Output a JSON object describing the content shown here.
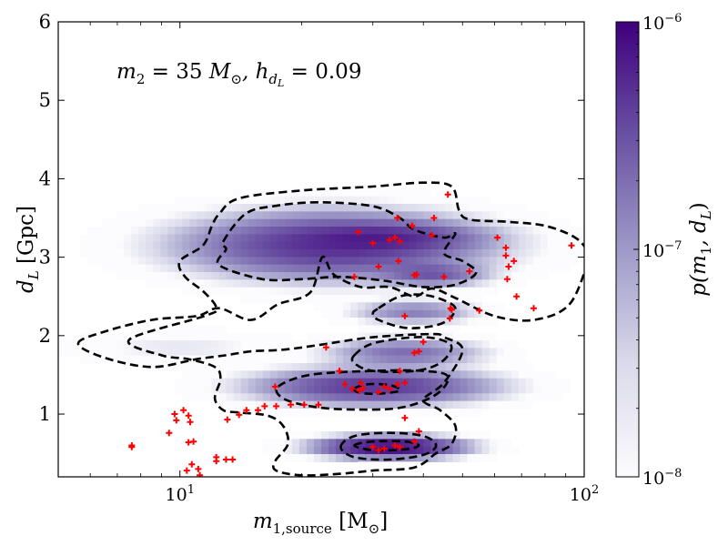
{
  "chart_data": {
    "type": "heatmap",
    "title": "",
    "annotation": "m₂ = 35 M⊙,  h_dL = 0.09",
    "annotation_parts": {
      "m2": "m",
      "m2_sub": "2",
      "m2_rest": " = 35 ",
      "msun": "M",
      "msun_sub": "⊙",
      "h": ",  h",
      "h_sub": "d",
      "h_subsub": "L",
      "h_rest": " = 0.09"
    },
    "xlabel": "m₁,source [M⊙]",
    "xlabel_parts": {
      "m": "m",
      "sub": "1,source",
      "rest": " [M",
      "sun": "⊙",
      "close": "]"
    },
    "ylabel": "d_L [Gpc]",
    "ylabel_parts": {
      "d": "d",
      "sub": "L",
      "rest": " [Gpc]"
    },
    "xscale": "log",
    "xlim": [
      5,
      100
    ],
    "ylim": [
      0.2,
      6
    ],
    "x_ticks": [
      {
        "value": 10,
        "base": "10",
        "exp": "1"
      },
      {
        "value": 100,
        "base": "10",
        "exp": "2"
      }
    ],
    "y_ticks": [
      {
        "value": 1,
        "label": "1"
      },
      {
        "value": 2,
        "label": "2"
      },
      {
        "value": 3,
        "label": "3"
      },
      {
        "value": 4,
        "label": "4"
      },
      {
        "value": 5,
        "label": "5"
      },
      {
        "value": 6,
        "label": "6"
      }
    ],
    "colorbar": {
      "label": "p(m₁, d_L)",
      "label_parts": {
        "p": "p(m",
        "sub1": "1",
        "mid": ", d",
        "subL": "L",
        "close": ")"
      },
      "scale": "log",
      "range": [
        1e-08,
        1e-06
      ],
      "ticks": [
        {
          "value": 1e-08,
          "base": "10",
          "exp": "−8"
        },
        {
          "value": 1e-07,
          "base": "10",
          "exp": "−7"
        },
        {
          "value": 1e-06,
          "base": "10",
          "exp": "−6"
        }
      ],
      "color_low": "#fcfbfd",
      "color_high": "#3f007d"
    },
    "density_blobs": [
      {
        "mx": 24,
        "d": 3.15,
        "sx": 0.19,
        "sd": 0.22,
        "peak": 5e-07
      },
      {
        "mx": 33,
        "d": 3.25,
        "sx": 0.12,
        "sd": 0.1,
        "peak": 3e-07
      },
      {
        "mx": 42,
        "d": 2.78,
        "sx": 0.07,
        "sd": 0.08,
        "peak": 2.5e-07
      },
      {
        "mx": 38,
        "d": 2.3,
        "sx": 0.08,
        "sd": 0.08,
        "peak": 1.5e-07
      },
      {
        "mx": 36,
        "d": 1.78,
        "sx": 0.1,
        "sd": 0.1,
        "peak": 2e-07
      },
      {
        "mx": 30,
        "d": 1.35,
        "sx": 0.15,
        "sd": 0.12,
        "peak": 4.5e-07
      },
      {
        "mx": 33,
        "d": 0.58,
        "sx": 0.09,
        "sd": 0.07,
        "peak": 9e-07
      },
      {
        "mx": 10,
        "d": 1.85,
        "sx": 0.14,
        "sd": 0.12,
        "peak": 2e-08
      }
    ],
    "contours": [
      [
        [
          5.6,
          1.9
        ],
        [
          6.5,
          2.05
        ],
        [
          8.5,
          2.2
        ],
        [
          11,
          2.25
        ],
        [
          12.5,
          2.35
        ],
        [
          15,
          2.2
        ],
        [
          17.5,
          2.4
        ],
        [
          21,
          2.55
        ],
        [
          22.5,
          3.0
        ],
        [
          24,
          2.78
        ],
        [
          28,
          2.62
        ],
        [
          33,
          2.62
        ],
        [
          38,
          2.5
        ],
        [
          42,
          2.6
        ],
        [
          48,
          2.48
        ],
        [
          60,
          2.25
        ],
        [
          75,
          2.2
        ],
        [
          92,
          2.4
        ],
        [
          103,
          3.0
        ],
        [
          103,
          3.05
        ],
        [
          95,
          3.25
        ],
        [
          80,
          3.4
        ],
        [
          65,
          3.45
        ],
        [
          52,
          3.48
        ],
        [
          49,
          3.6
        ],
        [
          47,
          3.9
        ],
        [
          40,
          3.95
        ],
        [
          30,
          3.9
        ],
        [
          20,
          3.85
        ],
        [
          14,
          3.75
        ],
        [
          12.5,
          3.55
        ],
        [
          12.0,
          3.4
        ],
        [
          11.4,
          3.15
        ],
        [
          10.0,
          2.95
        ],
        [
          10.3,
          2.75
        ],
        [
          11.5,
          2.55
        ],
        [
          12.3,
          2.35
        ],
        [
          11.5,
          2.25
        ],
        [
          7.5,
          1.95
        ],
        [
          9.0,
          1.75
        ],
        [
          10.5,
          1.7
        ],
        [
          12.2,
          1.6
        ],
        [
          12.6,
          1.45
        ],
        [
          12.2,
          1.2
        ],
        [
          12.8,
          1.05
        ],
        [
          14,
          1.02
        ],
        [
          16.5,
          0.98
        ],
        [
          18.0,
          0.85
        ],
        [
          18.5,
          0.62
        ],
        [
          17.2,
          0.4
        ],
        [
          17.3,
          0.28
        ],
        [
          20,
          0.22
        ],
        [
          25,
          0.24
        ],
        [
          30,
          0.28
        ],
        [
          38,
          0.32
        ],
        [
          43,
          0.5
        ],
        [
          47,
          0.62
        ],
        [
          48,
          0.85
        ],
        [
          44,
          1.05
        ],
        [
          40,
          1.18
        ],
        [
          45,
          1.4
        ],
        [
          50,
          1.82
        ],
        [
          45,
          1.98
        ],
        [
          42,
          2.02
        ],
        [
          30,
          1.98
        ],
        [
          22,
          1.88
        ],
        [
          18,
          1.82
        ],
        [
          15,
          1.8
        ],
        [
          13,
          1.75
        ],
        [
          11,
          1.7
        ],
        [
          8.5,
          1.6
        ],
        [
          6.5,
          1.72
        ]
      ],
      [
        [
          12.8,
          3.2
        ],
        [
          14.5,
          3.55
        ],
        [
          17,
          3.65
        ],
        [
          22,
          3.7
        ],
        [
          30,
          3.65
        ],
        [
          35,
          3.5
        ],
        [
          38,
          3.35
        ],
        [
          45,
          3.25
        ],
        [
          48,
          3.3
        ],
        [
          45,
          3.05
        ],
        [
          50,
          2.95
        ],
        [
          54,
          2.8
        ],
        [
          48,
          2.65
        ],
        [
          40,
          2.62
        ],
        [
          32,
          2.7
        ],
        [
          25,
          2.75
        ],
        [
          20,
          2.72
        ],
        [
          16,
          2.72
        ],
        [
          12.5,
          2.9
        ],
        [
          13.0,
          3.1
        ]
      ],
      [
        [
          31,
          2.35
        ],
        [
          35,
          2.5
        ],
        [
          40,
          2.52
        ],
        [
          45,
          2.45
        ],
        [
          48,
          2.35
        ],
        [
          46,
          2.2
        ],
        [
          42,
          2.12
        ],
        [
          36,
          2.1
        ],
        [
          31,
          2.2
        ],
        [
          30,
          2.28
        ]
      ],
      [
        [
          27,
          1.75
        ],
        [
          30,
          1.9
        ],
        [
          38,
          1.98
        ],
        [
          44,
          1.95
        ],
        [
          47,
          1.85
        ],
        [
          44,
          1.65
        ],
        [
          38,
          1.55
        ],
        [
          30,
          1.55
        ],
        [
          27,
          1.65
        ]
      ],
      [
        [
          17.5,
          1.35
        ],
        [
          21,
          1.5
        ],
        [
          30,
          1.55
        ],
        [
          40,
          1.55
        ],
        [
          46,
          1.48
        ],
        [
          43,
          1.25
        ],
        [
          35,
          1.08
        ],
        [
          26,
          1.06
        ],
        [
          21,
          1.1
        ],
        [
          18,
          1.2
        ]
      ],
      [
        [
          27,
          1.32
        ],
        [
          29,
          1.38
        ],
        [
          33,
          1.37
        ],
        [
          35,
          1.3
        ],
        [
          31,
          1.26
        ],
        [
          28,
          1.27
        ]
      ],
      [
        [
          25,
          0.58
        ],
        [
          27,
          0.72
        ],
        [
          33,
          0.76
        ],
        [
          40,
          0.72
        ],
        [
          43,
          0.6
        ],
        [
          40,
          0.48
        ],
        [
          33,
          0.42
        ],
        [
          27,
          0.45
        ]
      ],
      [
        [
          27,
          0.6
        ],
        [
          30,
          0.65
        ],
        [
          36,
          0.65
        ],
        [
          39,
          0.6
        ],
        [
          36,
          0.55
        ],
        [
          30,
          0.54
        ]
      ]
    ],
    "events": [
      [
        7.6,
        0.6
      ],
      [
        7.6,
        0.58
      ],
      [
        9.4,
        0.76
      ],
      [
        9.7,
        1.0
      ],
      [
        9.8,
        0.92
      ],
      [
        10.2,
        1.05
      ],
      [
        10.5,
        0.98
      ],
      [
        10.6,
        0.9
      ],
      [
        10.5,
        0.64
      ],
      [
        10.8,
        0.65
      ],
      [
        10.4,
        0.28
      ],
      [
        10.7,
        0.36
      ],
      [
        11.1,
        0.3
      ],
      [
        11.2,
        0.22
      ],
      [
        12.3,
        0.4
      ],
      [
        12.3,
        0.45
      ],
      [
        13.0,
        0.42
      ],
      [
        13.5,
        0.42
      ],
      [
        13.1,
        0.93
      ],
      [
        14.0,
        0.99
      ],
      [
        14.6,
        1.05
      ],
      [
        15.6,
        1.05
      ],
      [
        16.2,
        1.1
      ],
      [
        17.3,
        1.1
      ],
      [
        17.2,
        1.35
      ],
      [
        18.8,
        1.12
      ],
      [
        20.3,
        1.12
      ],
      [
        22.0,
        1.12
      ],
      [
        23.0,
        1.85
      ],
      [
        24.8,
        1.55
      ],
      [
        25.6,
        1.38
      ],
      [
        26.7,
        1.32
      ],
      [
        27.8,
        1.3
      ],
      [
        28.4,
        1.33
      ],
      [
        28.0,
        1.4
      ],
      [
        31,
        1.28
      ],
      [
        32,
        1.35
      ],
      [
        33,
        1.32
      ],
      [
        34.5,
        1.38
      ],
      [
        35.0,
        1.55
      ],
      [
        36,
        1.4
      ],
      [
        30,
        0.58
      ],
      [
        31,
        0.54
      ],
      [
        32,
        0.56
      ],
      [
        34,
        0.6
      ],
      [
        35,
        0.58
      ],
      [
        36,
        0.95
      ],
      [
        38,
        0.65
      ],
      [
        39,
        0.78
      ],
      [
        38,
        1.78
      ],
      [
        39,
        1.8
      ],
      [
        40,
        1.92
      ],
      [
        36,
        2.25
      ],
      [
        27,
        2.75
      ],
      [
        27.6,
        3.32
      ],
      [
        30,
        3.18
      ],
      [
        31,
        2.88
      ],
      [
        33,
        3.22
      ],
      [
        34,
        3.25
      ],
      [
        34.5,
        3.5
      ],
      [
        35,
        3.2
      ],
      [
        34.7,
        2.95
      ],
      [
        37.5,
        3.4
      ],
      [
        38,
        2.77
      ],
      [
        38.5,
        2.78
      ],
      [
        42,
        3.28
      ],
      [
        42.5,
        3.5
      ],
      [
        45,
        2.75
      ],
      [
        46,
        3.8
      ],
      [
        46.5,
        2.22
      ],
      [
        46.7,
        2.35
      ],
      [
        47,
        2.33
      ],
      [
        52,
        2.82
      ],
      [
        55,
        2.32
      ],
      [
        61,
        3.25
      ],
      [
        64,
        3.02
      ],
      [
        64,
        3.12
      ],
      [
        64.5,
        2.72
      ],
      [
        65,
        2.88
      ],
      [
        67,
        2.95
      ],
      [
        68,
        2.5
      ],
      [
        75,
        2.35
      ],
      [
        93,
        3.15
      ]
    ]
  }
}
